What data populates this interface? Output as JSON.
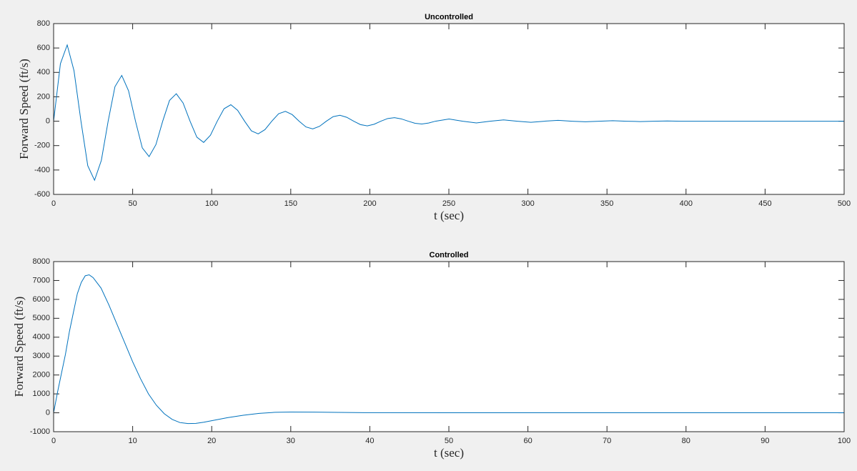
{
  "chart_data": [
    {
      "type": "line",
      "title": "Uncontrolled",
      "xlabel": "t (sec)",
      "ylabel": "Forward Speed (ft/s)",
      "color": "#0072bd",
      "xlim": [
        0,
        500
      ],
      "xticks": [
        0,
        50,
        100,
        150,
        200,
        250,
        300,
        350,
        400,
        450,
        500
      ],
      "ylim": [
        -600,
        800
      ],
      "yticks": [
        -600,
        -400,
        -200,
        0,
        200,
        400,
        600,
        800
      ],
      "x": [
        0,
        4.3,
        8.6,
        12.9,
        17.3,
        21.6,
        25.9,
        30.2,
        34.5,
        38.8,
        43.1,
        47.4,
        51.8,
        56.1,
        60.4,
        64.7,
        69,
        73.3,
        77.6,
        81.9,
        86.3,
        90.6,
        94.9,
        99.2,
        103.5,
        107.8,
        112.1,
        116.4,
        120.8,
        125.1,
        129.4,
        133.7,
        138,
        142.3,
        146.6,
        150.9,
        155.3,
        159.6,
        163.9,
        168.2,
        172.5,
        176.8,
        181.1,
        185.4,
        189.8,
        194.1,
        198.4,
        202.7,
        207,
        211.3,
        215.6,
        219.9,
        224.3,
        228.6,
        232.9,
        237.2,
        241.5,
        250.1,
        258.8,
        267.4,
        276,
        284.6,
        293.3,
        301.9,
        310.5,
        319.1,
        327.8,
        336.4,
        345,
        353.6,
        362.3,
        370.9,
        379.5,
        388.1,
        396.8,
        500
      ],
      "values": [
        0,
        471,
        625,
        414,
        0,
        -365,
        -484,
        -321,
        0,
        283,
        375,
        249,
        0,
        -219,
        -290,
        -192,
        0,
        170,
        225,
        149,
        0,
        -131,
        -174,
        -115,
        0,
        102,
        135,
        89,
        0,
        -79,
        -104,
        -69,
        0,
        61,
        81,
        54,
        0,
        -47,
        -63,
        -42,
        0,
        37,
        49,
        32,
        0,
        -28,
        -38,
        -25,
        0,
        22,
        29,
        19,
        0,
        -17,
        -23,
        -15,
        0,
        18,
        0,
        -14,
        0,
        11,
        0,
        -9,
        0,
        7,
        0,
        -5,
        0,
        4,
        0,
        -3,
        0,
        2,
        0,
        0
      ]
    },
    {
      "type": "line",
      "title": "Controlled",
      "xlabel": "t (sec)",
      "ylabel": "Forward Speed (ft/s)",
      "color": "#0072bd",
      "xlim": [
        0,
        100
      ],
      "xticks": [
        0,
        10,
        20,
        30,
        40,
        50,
        60,
        70,
        80,
        90,
        100
      ],
      "ylim": [
        -1000,
        8000
      ],
      "yticks": [
        -1000,
        0,
        1000,
        2000,
        3000,
        4000,
        5000,
        6000,
        7000,
        8000
      ],
      "x": [
        0,
        0.5,
        1,
        1.5,
        2,
        2.5,
        3,
        3.5,
        4,
        4.5,
        5,
        6,
        7,
        8,
        9,
        10,
        11,
        12,
        13,
        14,
        15,
        16,
        17,
        18,
        19,
        20,
        22,
        24,
        26,
        28,
        30,
        33,
        36,
        40,
        50,
        100
      ],
      "values": [
        0,
        1100,
        2100,
        3100,
        4300,
        5300,
        6300,
        6900,
        7250,
        7300,
        7150,
        6600,
        5700,
        4700,
        3700,
        2700,
        1800,
        1000,
        400,
        -50,
        -350,
        -520,
        -570,
        -560,
        -500,
        -420,
        -260,
        -130,
        -30,
        25,
        40,
        35,
        20,
        5,
        0,
        0
      ]
    }
  ]
}
